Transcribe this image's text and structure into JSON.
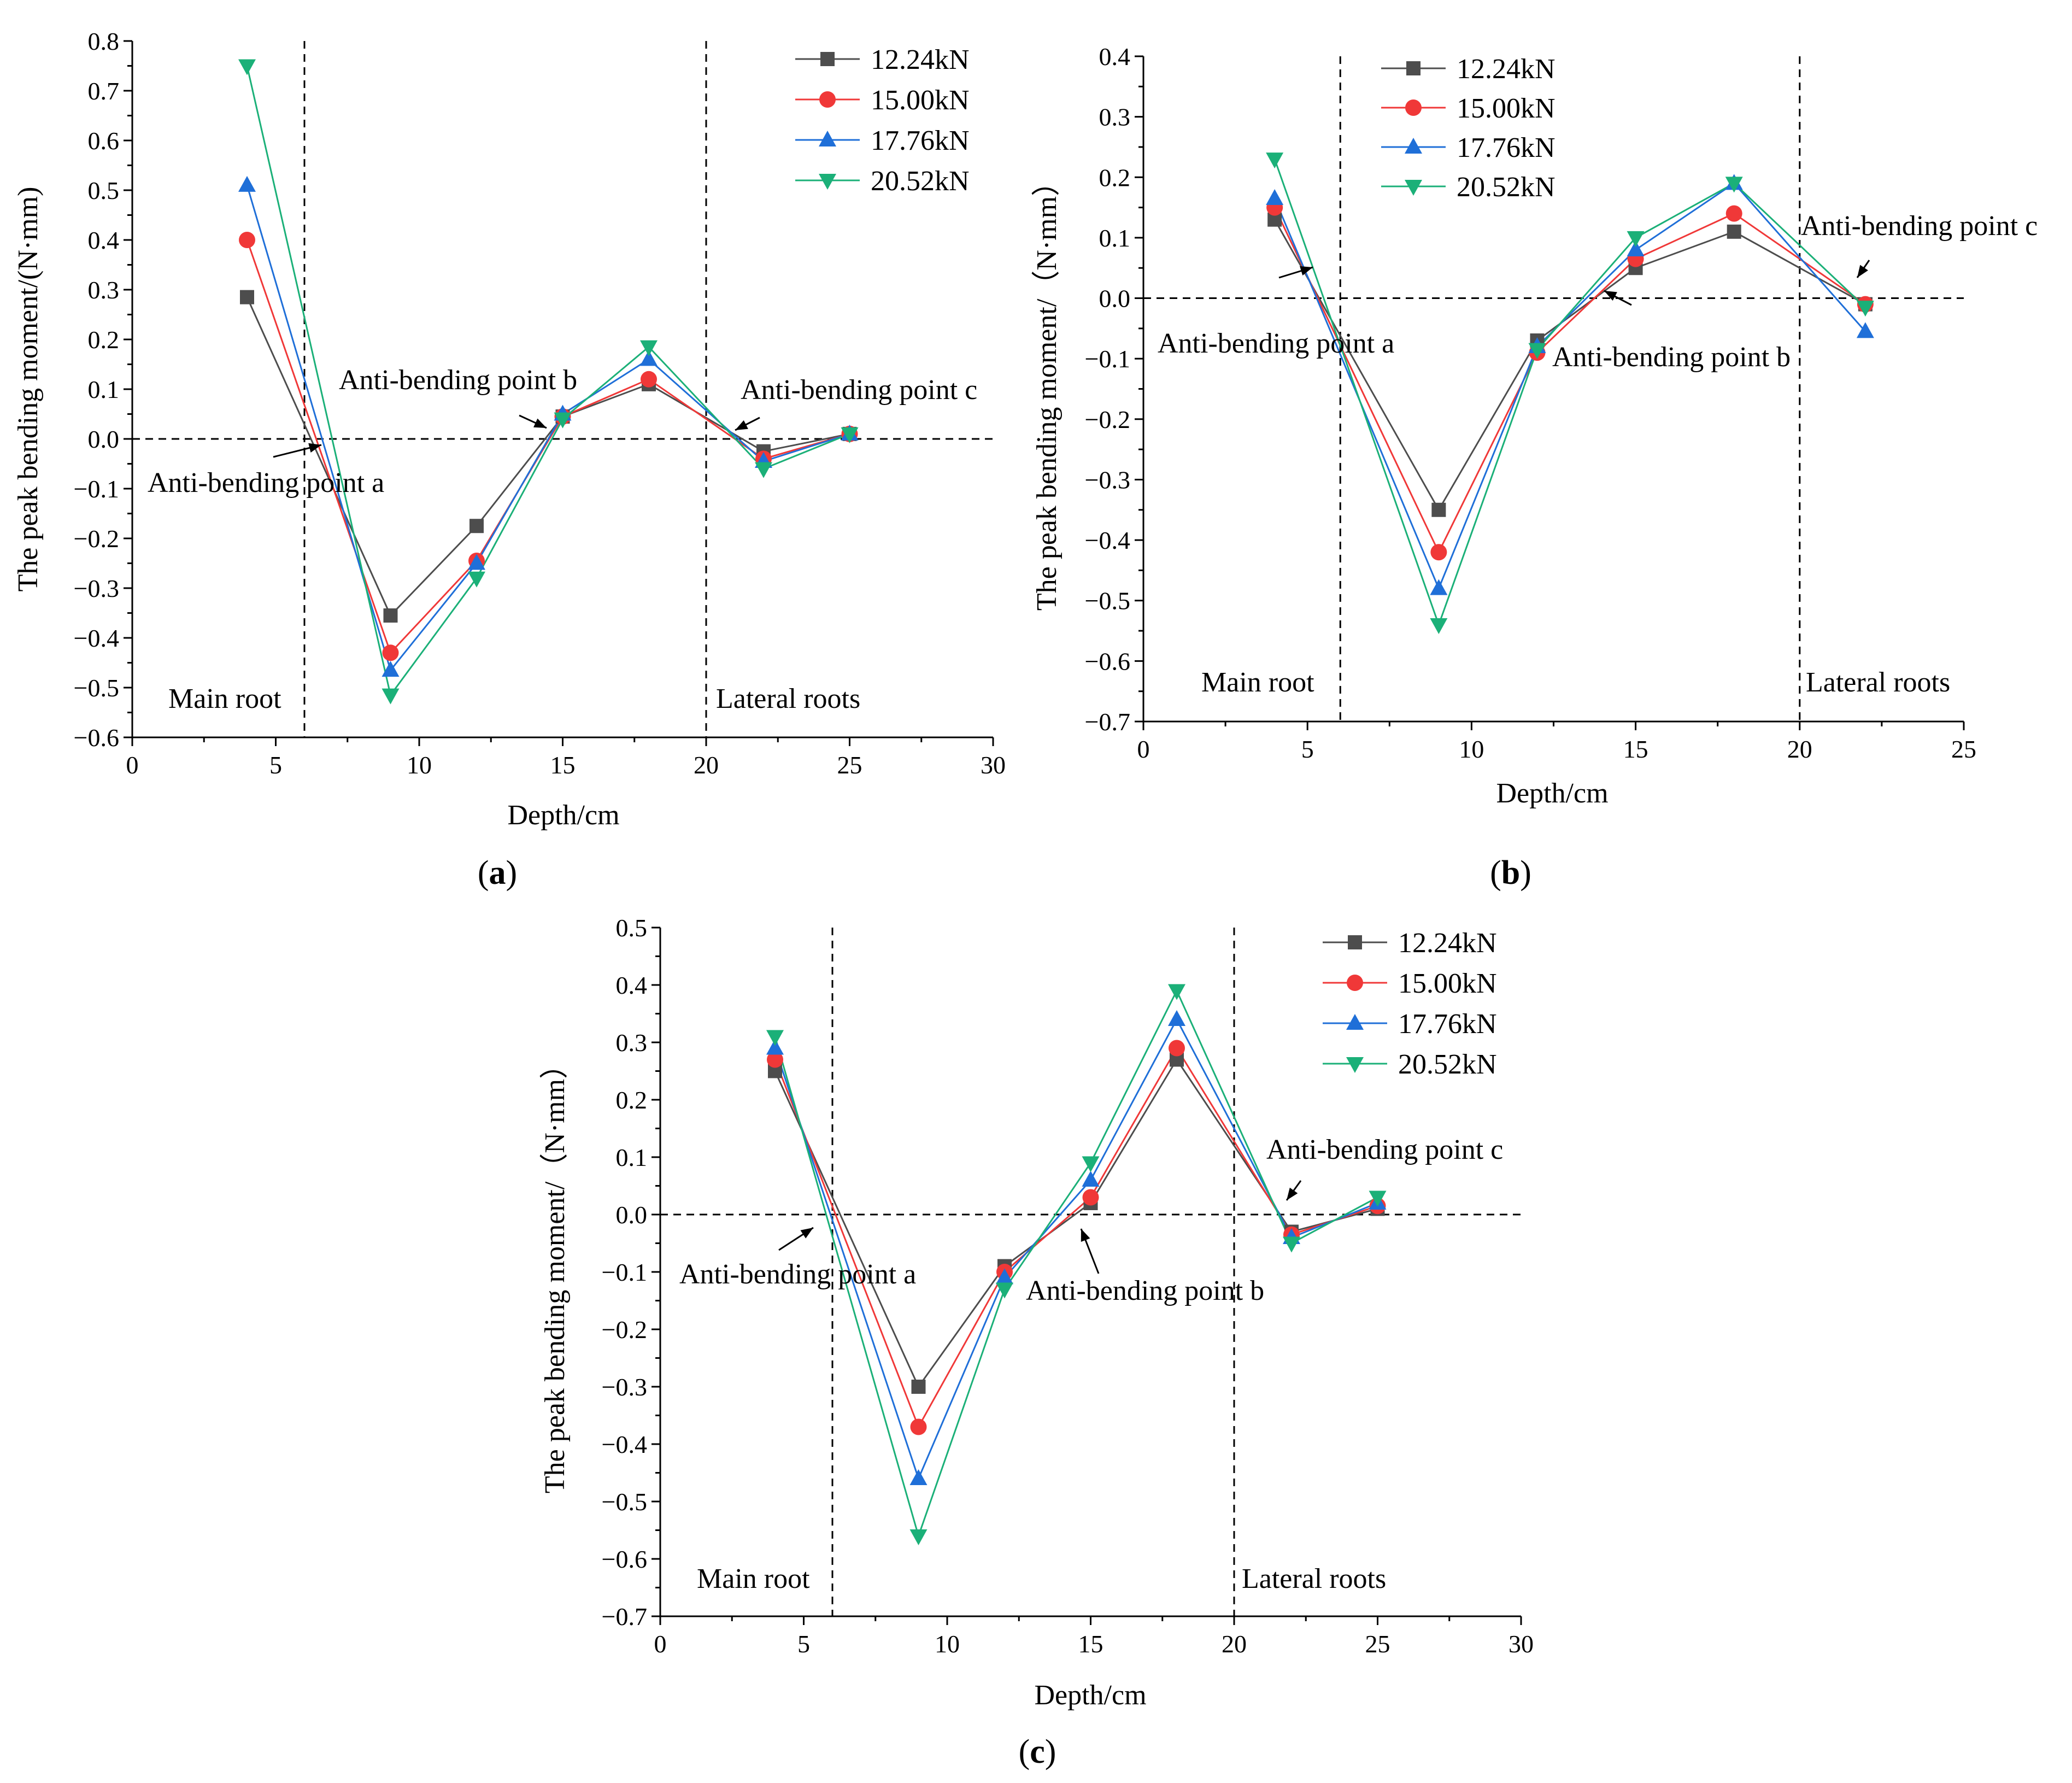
{
  "colors": {
    "s1224": "#4d4d4d",
    "s1500": "#f03838",
    "s1776": "#1f6fd8",
    "s2052": "#1bb078",
    "axis": "#000000"
  },
  "chart_data": [
    {
      "type": "line",
      "panel_label": "a",
      "xlabel": "Depth/cm",
      "ylabel": "The peak bending moment/(N·mm)",
      "xlim": [
        0,
        30
      ],
      "ylim": [
        -0.6,
        0.8
      ],
      "xticks": [
        0,
        5,
        10,
        15,
        20,
        25,
        30
      ],
      "yticks": [
        -0.6,
        -0.5,
        -0.4,
        -0.3,
        -0.2,
        -0.1,
        0.0,
        0.1,
        0.2,
        0.3,
        0.4,
        0.5,
        0.6,
        0.7,
        0.8
      ],
      "x": [
        4,
        9,
        12,
        15,
        18,
        22,
        25
      ],
      "series": [
        {
          "name": "12.24kN",
          "marker": "square",
          "values": [
            0.285,
            -0.355,
            -0.175,
            0.045,
            0.11,
            -0.025,
            0.01
          ]
        },
        {
          "name": "15.00kN",
          "marker": "circle",
          "values": [
            0.4,
            -0.43,
            -0.245,
            0.045,
            0.12,
            -0.04,
            0.01
          ]
        },
        {
          "name": "17.76kN",
          "marker": "triangle-up",
          "values": [
            0.51,
            -0.465,
            -0.25,
            0.05,
            0.16,
            -0.045,
            0.01
          ]
        },
        {
          "name": "20.52kN",
          "marker": "triangle-down",
          "values": [
            0.75,
            -0.515,
            -0.28,
            0.04,
            0.185,
            -0.06,
            0.01
          ]
        }
      ],
      "vlines": [
        6,
        20
      ],
      "hline": 0,
      "regions": [
        "Main root",
        "Lateral roots"
      ],
      "annotations": [
        "Anti-bending point a",
        "Anti-bending point b",
        "Anti-bending point c"
      ],
      "legend_position": "top-right"
    },
    {
      "type": "line",
      "panel_label": "b",
      "xlabel": "Depth/cm",
      "ylabel": "The peak bending moment/（N·mm）",
      "xlim": [
        0,
        25
      ],
      "ylim": [
        -0.7,
        0.4
      ],
      "xticks": [
        0,
        5,
        10,
        15,
        20,
        25
      ],
      "yticks": [
        -0.7,
        -0.6,
        -0.5,
        -0.4,
        -0.3,
        -0.2,
        -0.1,
        0.0,
        0.1,
        0.2,
        0.3,
        0.4
      ],
      "x": [
        4,
        9,
        12,
        15,
        18,
        22
      ],
      "series": [
        {
          "name": "12.24kN",
          "marker": "square",
          "values": [
            0.13,
            -0.35,
            -0.07,
            0.05,
            0.11,
            -0.01
          ]
        },
        {
          "name": "15.00kN",
          "marker": "circle",
          "values": [
            0.15,
            -0.42,
            -0.09,
            0.065,
            0.14,
            -0.01
          ]
        },
        {
          "name": "17.76kN",
          "marker": "triangle-up",
          "values": [
            0.165,
            -0.48,
            -0.08,
            0.08,
            0.19,
            -0.055
          ]
        },
        {
          "name": "20.52kN",
          "marker": "triangle-down",
          "values": [
            0.23,
            -0.54,
            -0.085,
            0.1,
            0.19,
            -0.015
          ]
        }
      ],
      "vlines": [
        6,
        20
      ],
      "hline": 0,
      "regions": [
        "Main root",
        "Lateral roots"
      ],
      "annotations": [
        "Anti-bending point a",
        "Anti-bending point b",
        "Anti-bending point c"
      ],
      "legend_position": "top-left"
    },
    {
      "type": "line",
      "panel_label": "c",
      "xlabel": "Depth/cm",
      "ylabel": "The peak bending moment/（N·mm）",
      "xlim": [
        0,
        30
      ],
      "ylim": [
        -0.7,
        0.5
      ],
      "xticks": [
        0,
        5,
        10,
        15,
        20,
        25,
        30
      ],
      "yticks": [
        -0.7,
        -0.6,
        -0.5,
        -0.4,
        -0.3,
        -0.2,
        -0.1,
        0.0,
        0.1,
        0.2,
        0.3,
        0.4,
        0.5
      ],
      "x": [
        4,
        9,
        12,
        15,
        18,
        22,
        25
      ],
      "series": [
        {
          "name": "12.24kN",
          "marker": "square",
          "values": [
            0.25,
            -0.3,
            -0.09,
            0.02,
            0.27,
            -0.03,
            0.01
          ]
        },
        {
          "name": "15.00kN",
          "marker": "circle",
          "values": [
            0.27,
            -0.37,
            -0.1,
            0.03,
            0.29,
            -0.035,
            0.015
          ]
        },
        {
          "name": "17.76kN",
          "marker": "triangle-up",
          "values": [
            0.29,
            -0.46,
            -0.11,
            0.06,
            0.34,
            -0.04,
            0.02
          ]
        },
        {
          "name": "20.52kN",
          "marker": "triangle-down",
          "values": [
            0.31,
            -0.56,
            -0.13,
            0.09,
            0.39,
            -0.05,
            0.03
          ]
        }
      ],
      "vlines": [
        6,
        20
      ],
      "hline": 0,
      "regions": [
        "Main root",
        "Lateral roots"
      ],
      "annotations": [
        "Anti-bending point a",
        "Anti-bending point b",
        "Anti-bending point c"
      ],
      "legend_position": "top-right"
    }
  ]
}
